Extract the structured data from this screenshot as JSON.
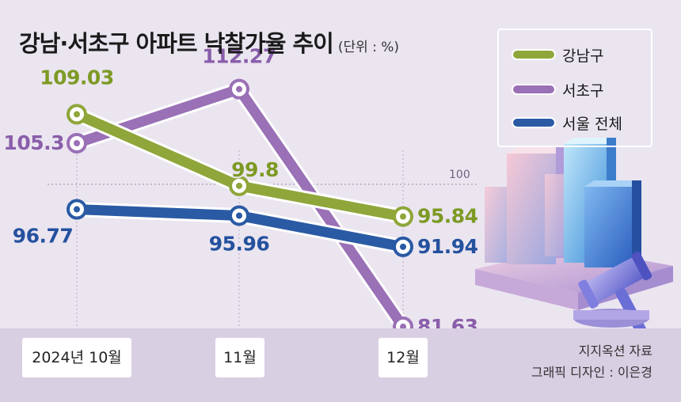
{
  "header": {
    "title": "강남·서초구 아파트 낙찰가율 추이",
    "unit": "(단위 : %)"
  },
  "credits": {
    "source": "지지옥션 자료",
    "designer": "그래픽 디자인 : 이은경"
  },
  "colors": {
    "gangnam": "#8fa63a",
    "seocho": "#9a70b6",
    "seoul": "#2a5aa4",
    "gangnam_label": "#7d9a24",
    "seocho_label": "#8a5eaa",
    "seoul_label": "#24519e",
    "background": "#ebe5f0"
  },
  "chart_data": {
    "type": "line",
    "categories": [
      "2024년 10월",
      "11월",
      "12월"
    ],
    "series": [
      {
        "name": "강남구",
        "values": [
          109.03,
          99.8,
          95.84
        ],
        "color_key": "gangnam"
      },
      {
        "name": "서초구",
        "values": [
          105.3,
          112.27,
          81.63
        ],
        "color_key": "seocho"
      },
      {
        "name": "서울 전체",
        "values": [
          96.77,
          95.96,
          91.94
        ],
        "color_key": "seoul"
      }
    ],
    "reference_line": {
      "value": 100,
      "label": "100"
    },
    "data_labels": [
      [
        "109.03",
        "99.8",
        "95.84"
      ],
      [
        "105.3",
        "112.27",
        "81.63"
      ],
      [
        "96.77",
        "95.96",
        "91.94"
      ]
    ],
    "legend_position": "top-right",
    "grid": false
  }
}
